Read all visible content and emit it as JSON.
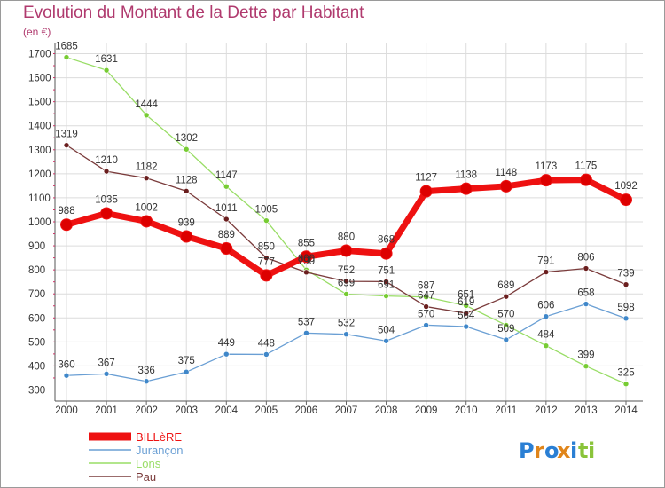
{
  "chart_data": {
    "type": "line",
    "title": "Evolution du Montant de la Dette par Habitant",
    "unit_label": "(en €)",
    "xlabel": "",
    "ylabel": "",
    "ylim": [
      300,
      1750
    ],
    "yticks": [
      300,
      400,
      500,
      600,
      700,
      800,
      900,
      1000,
      1100,
      1200,
      1300,
      1400,
      1500,
      1600,
      1700
    ],
    "x": [
      "2000",
      "2001",
      "2002",
      "2003",
      "2004",
      "2005",
      "2006",
      "2007",
      "2008",
      "2009",
      "2010",
      "2011",
      "2012",
      "2013",
      "2014"
    ],
    "legend_position": "bottom-left",
    "series": [
      {
        "name": "BILLèRE",
        "color": "#ee1111",
        "marker": "#dd0000",
        "emphasis": true,
        "values": [
          988,
          1035,
          1002,
          939,
          889,
          777,
          855,
          880,
          868,
          1127,
          1138,
          1148,
          1173,
          1175,
          1092
        ]
      },
      {
        "name": "Jurançon",
        "color": "#6a9fd4",
        "marker": "#3f87c9",
        "emphasis": false,
        "values": [
          360,
          367,
          336,
          375,
          449,
          448,
          537,
          532,
          504,
          570,
          564,
          509,
          606,
          658,
          598
        ]
      },
      {
        "name": "Lons",
        "color": "#99dd66",
        "marker": "#77cc33",
        "emphasis": false,
        "values": [
          1685,
          1631,
          1444,
          1302,
          1147,
          1005,
          800,
          699,
          691,
          687,
          651,
          570,
          484,
          399,
          325
        ]
      },
      {
        "name": "Pau",
        "color": "#7a3b3b",
        "marker": "#6a1e1e",
        "emphasis": false,
        "values": [
          1319,
          1210,
          1182,
          1128,
          1011,
          850,
          790,
          752,
          751,
          647,
          619,
          689,
          791,
          806,
          739
        ]
      }
    ]
  },
  "logo": {
    "text": "Proxiti",
    "colors": [
      "#2a7fd4",
      "#e0851a",
      "#2a7fd4",
      "#e0851a",
      "#2a7fd4",
      "#8ac43a",
      "#8ac43a"
    ]
  }
}
